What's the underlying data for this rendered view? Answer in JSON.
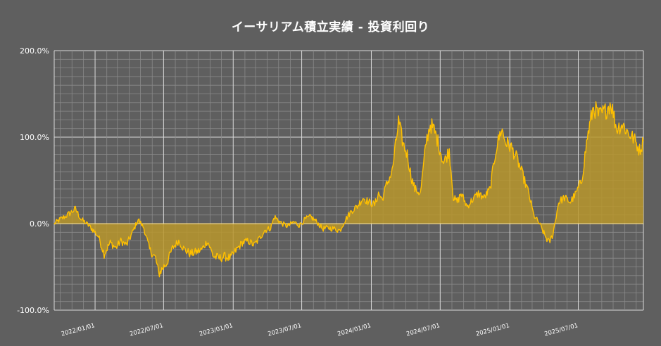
{
  "title": "イーサリアム積立実績 - 投資利回り",
  "colors": {
    "background": "#5f5f5f",
    "grid": "#8a8a8a",
    "grid_major": "#d9d9d9",
    "line": "#ffc000",
    "fill": "#b8962b",
    "zero_line": "#ffe599",
    "text": "#ffffff"
  },
  "chart_data": {
    "type": "area",
    "title": "イーサリアム積立実績 - 投資利回り",
    "xlabel": "",
    "ylabel": "",
    "ylim": [
      -100,
      200
    ],
    "xlim": [
      "2021-09-15",
      "2025-12-20"
    ],
    "y_unit": "%",
    "grid": true,
    "legend": "none",
    "y_ticks": [
      {
        "value": -100,
        "label": "-100.0%"
      },
      {
        "value": 0,
        "label": "0.0%"
      },
      {
        "value": 100,
        "label": "100.0%"
      },
      {
        "value": 200,
        "label": "200.0%"
      }
    ],
    "x_ticks": [
      {
        "date": "2022-01-01",
        "label": "2022/01/01"
      },
      {
        "date": "2022-07-01",
        "label": "2022/07/01"
      },
      {
        "date": "2023-01-01",
        "label": "2023/01/01"
      },
      {
        "date": "2023-07-01",
        "label": "2023/07/01"
      },
      {
        "date": "2024-01-01",
        "label": "2024/01/01"
      },
      {
        "date": "2024-07-01",
        "label": "2024/07/01"
      },
      {
        "date": "2025-01-01",
        "label": "2025/01/01"
      },
      {
        "date": "2025-07-01",
        "label": "2025/07/01"
      }
    ],
    "series": [
      {
        "points": [
          [
            "2021-09-15",
            0
          ],
          [
            "2021-10-01",
            5
          ],
          [
            "2021-10-20",
            10
          ],
          [
            "2021-11-10",
            17
          ],
          [
            "2021-11-25",
            5
          ],
          [
            "2021-12-10",
            0
          ],
          [
            "2021-12-28",
            -8
          ],
          [
            "2022-01-10",
            -15
          ],
          [
            "2022-01-25",
            -35
          ],
          [
            "2022-02-10",
            -22
          ],
          [
            "2022-02-25",
            -28
          ],
          [
            "2022-03-10",
            -20
          ],
          [
            "2022-03-25",
            -25
          ],
          [
            "2022-04-10",
            -10
          ],
          [
            "2022-04-25",
            5
          ],
          [
            "2022-05-10",
            -5
          ],
          [
            "2022-05-25",
            -30
          ],
          [
            "2022-06-10",
            -40
          ],
          [
            "2022-06-18",
            -58
          ],
          [
            "2022-06-28",
            -52
          ],
          [
            "2022-07-10",
            -45
          ],
          [
            "2022-07-25",
            -28
          ],
          [
            "2022-08-10",
            -20
          ],
          [
            "2022-08-25",
            -30
          ],
          [
            "2022-09-10",
            -35
          ],
          [
            "2022-09-25",
            -33
          ],
          [
            "2022-10-10",
            -30
          ],
          [
            "2022-10-25",
            -20
          ],
          [
            "2022-11-10",
            -38
          ],
          [
            "2022-11-25",
            -40
          ],
          [
            "2022-12-10",
            -38
          ],
          [
            "2022-12-25",
            -40
          ],
          [
            "2023-01-10",
            -30
          ],
          [
            "2023-01-25",
            -22
          ],
          [
            "2023-02-10",
            -20
          ],
          [
            "2023-02-25",
            -25
          ],
          [
            "2023-03-10",
            -18
          ],
          [
            "2023-03-25",
            -8
          ],
          [
            "2023-04-10",
            -5
          ],
          [
            "2023-04-20",
            8
          ],
          [
            "2023-05-10",
            0
          ],
          [
            "2023-05-25",
            -3
          ],
          [
            "2023-06-10",
            2
          ],
          [
            "2023-06-25",
            -2
          ],
          [
            "2023-07-10",
            5
          ],
          [
            "2023-07-25",
            8
          ],
          [
            "2023-08-10",
            2
          ],
          [
            "2023-08-25",
            -6
          ],
          [
            "2023-09-10",
            -5
          ],
          [
            "2023-09-25",
            -6
          ],
          [
            "2023-10-10",
            -8
          ],
          [
            "2023-10-25",
            5
          ],
          [
            "2023-11-10",
            15
          ],
          [
            "2023-11-25",
            20
          ],
          [
            "2023-12-10",
            30
          ],
          [
            "2023-12-25",
            25
          ],
          [
            "2024-01-10",
            22
          ],
          [
            "2024-01-20",
            35
          ],
          [
            "2024-01-30",
            28
          ],
          [
            "2024-02-10",
            45
          ],
          [
            "2024-02-25",
            60
          ],
          [
            "2024-03-05",
            90
          ],
          [
            "2024-03-13",
            118
          ],
          [
            "2024-03-25",
            92
          ],
          [
            "2024-04-05",
            80
          ],
          [
            "2024-04-15",
            55
          ],
          [
            "2024-04-25",
            40
          ],
          [
            "2024-05-10",
            35
          ],
          [
            "2024-05-25",
            95
          ],
          [
            "2024-06-05",
            115
          ],
          [
            "2024-06-15",
            108
          ],
          [
            "2024-06-25",
            95
          ],
          [
            "2024-07-10",
            70
          ],
          [
            "2024-07-25",
            85
          ],
          [
            "2024-08-05",
            30
          ],
          [
            "2024-08-15",
            25
          ],
          [
            "2024-08-25",
            35
          ],
          [
            "2024-09-10",
            20
          ],
          [
            "2024-09-25",
            28
          ],
          [
            "2024-10-10",
            35
          ],
          [
            "2024-10-25",
            30
          ],
          [
            "2024-11-10",
            40
          ],
          [
            "2024-11-25",
            85
          ],
          [
            "2024-12-10",
            110
          ],
          [
            "2024-12-20",
            95
          ],
          [
            "2025-01-05",
            88
          ],
          [
            "2025-01-20",
            75
          ],
          [
            "2025-02-05",
            55
          ],
          [
            "2025-02-20",
            35
          ],
          [
            "2025-03-05",
            10
          ],
          [
            "2025-03-20",
            0
          ],
          [
            "2025-04-05",
            -15
          ],
          [
            "2025-04-15",
            -22
          ],
          [
            "2025-04-25",
            -12
          ],
          [
            "2025-05-10",
            25
          ],
          [
            "2025-05-25",
            30
          ],
          [
            "2025-06-10",
            25
          ],
          [
            "2025-06-25",
            35
          ],
          [
            "2025-07-10",
            50
          ],
          [
            "2025-07-25",
            100
          ],
          [
            "2025-08-10",
            135
          ],
          [
            "2025-08-25",
            125
          ],
          [
            "2025-09-10",
            130
          ],
          [
            "2025-09-25",
            140
          ],
          [
            "2025-10-10",
            110
          ],
          [
            "2025-10-25",
            115
          ],
          [
            "2025-11-10",
            105
          ],
          [
            "2025-11-25",
            98
          ],
          [
            "2025-12-10",
            85
          ],
          [
            "2025-12-20",
            95
          ]
        ]
      }
    ]
  }
}
